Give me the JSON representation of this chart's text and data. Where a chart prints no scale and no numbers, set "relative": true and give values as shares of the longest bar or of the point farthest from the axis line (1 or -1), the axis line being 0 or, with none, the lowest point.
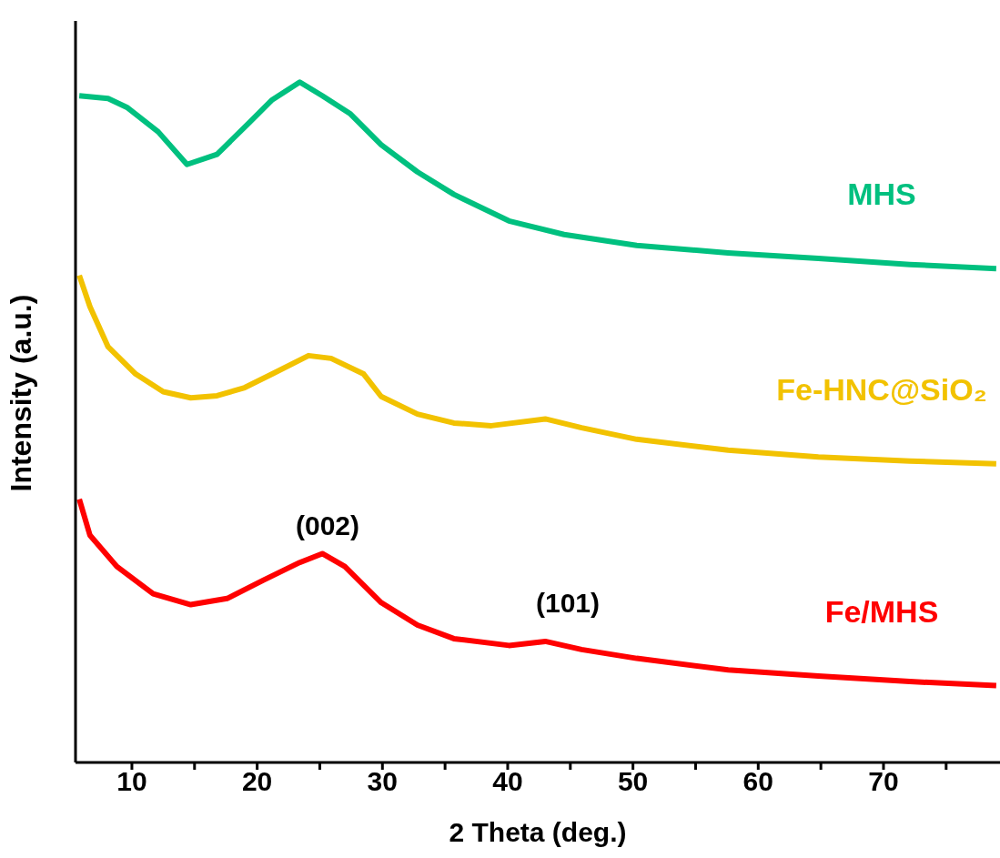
{
  "chart_data": {
    "type": "line",
    "relative": true,
    "xlabel": "2 Theta (deg.)",
    "ylabel": "Intensity (a.u.)",
    "xlim": [
      5.5,
      79.3
    ],
    "xticks": [
      10,
      {
        "value": 15,
        "label": null
      },
      20,
      {
        "value": 25,
        "label": null
      },
      30,
      {
        "value": 35,
        "label": null
      },
      40,
      {
        "value": 45,
        "label": null
      },
      50,
      {
        "value": 55,
        "label": null
      },
      60,
      {
        "value": 65,
        "label": null
      },
      70,
      {
        "value": 75,
        "label": null
      }
    ],
    "x": [
      5.8,
      8.1,
      9.6,
      12.1,
      14.4,
      16.8,
      19.4,
      21.2,
      23.4,
      25.2,
      27.4,
      29.9,
      32.8,
      35.7,
      40.1,
      44.5,
      50.3,
      57.6,
      64.8,
      72.1,
      79.0
    ],
    "series": [
      {
        "name": "MHS",
        "color": "#00c07f",
        "values": [
          0.98,
          0.976,
          0.963,
          0.927,
          0.879,
          0.894,
          0.941,
          0.974,
          1.0,
          0.98,
          0.954,
          0.908,
          0.868,
          0.835,
          0.796,
          0.776,
          0.76,
          0.749,
          0.741,
          0.732,
          0.726
        ]
      },
      {
        "name": "Fe-HNC@SiO₂",
        "color": "#f2c200",
        "x": [
          5.8,
          6.65,
          8.1,
          10.3,
          12.5,
          14.7,
          16.8,
          19.0,
          21.2,
          24.1,
          25.9,
          28.5,
          29.9,
          32.8,
          35.7,
          38.7,
          43.0,
          45.9,
          50.3,
          57.6,
          64.8,
          72.1,
          79.0
        ],
        "values": [
          0.716,
          0.67,
          0.611,
          0.571,
          0.545,
          0.536,
          0.539,
          0.551,
          0.571,
          0.598,
          0.594,
          0.571,
          0.538,
          0.512,
          0.499,
          0.495,
          0.505,
          0.492,
          0.475,
          0.459,
          0.449,
          0.443,
          0.439
        ]
      },
      {
        "name": "Fe/MHS",
        "color": "#ff0000",
        "x": [
          5.8,
          6.65,
          8.8,
          11.7,
          14.7,
          17.6,
          20.5,
          23.4,
          25.2,
          27.0,
          29.9,
          32.8,
          35.7,
          40.1,
          43.0,
          45.9,
          50.3,
          57.6,
          64.8,
          72.1,
          79.0
        ],
        "values": [
          0.387,
          0.334,
          0.288,
          0.248,
          0.232,
          0.241,
          0.268,
          0.294,
          0.307,
          0.288,
          0.235,
          0.202,
          0.182,
          0.172,
          0.178,
          0.166,
          0.153,
          0.136,
          0.127,
          0.119,
          0.113
        ]
      }
    ],
    "annotations": [
      "(002)",
      "(101)"
    ]
  }
}
